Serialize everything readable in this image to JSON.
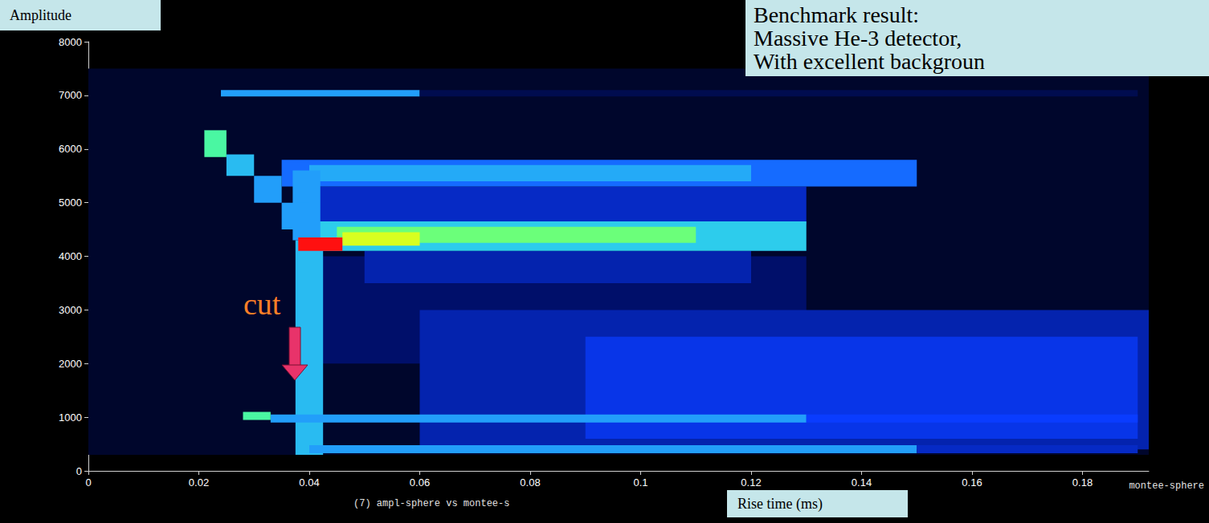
{
  "chart_data": {
    "type": "heatmap",
    "title": [
      "Benchmark result:",
      "Massive He-3 detector,",
      "With excellent backgroun"
    ],
    "y_label": "Amplitude",
    "x_label": "Rise time (ms)",
    "annotations": [
      "cut",
      "(7) ampl-sphere vs montee-s",
      "montee-sphere"
    ],
    "xlim": [
      0,
      0.192
    ],
    "xticks": [
      0,
      0.02,
      0.04,
      0.06,
      0.08,
      0.1,
      0.12,
      0.14,
      0.16,
      0.18
    ],
    "ylim": [
      0,
      8000
    ],
    "yticks": [
      0,
      1000,
      2000,
      3000,
      4000,
      5000,
      6000,
      7000,
      8000
    ],
    "grid": false,
    "colors": [
      "#000000",
      "#00106e",
      "#0a3cff",
      "#1e90ff",
      "#30d8e8",
      "#50ff90",
      "#d8ff20",
      "#ff9000",
      "#ff1010"
    ],
    "zlim": [
      0,
      10
    ],
    "cells": [
      [
        0.0,
        0.192,
        300,
        7500,
        0.5
      ],
      [
        0.04,
        0.13,
        2000,
        4000,
        1.2
      ],
      [
        0.06,
        0.192,
        400,
        3000,
        1.8
      ],
      [
        0.09,
        0.19,
        600,
        2500,
        2.3
      ],
      [
        0.05,
        0.12,
        3500,
        4100,
        1.8
      ],
      [
        0.04,
        0.13,
        4600,
        5300,
        2.0
      ],
      [
        0.035,
        0.15,
        5300,
        5800,
        3.2
      ],
      [
        0.04,
        0.12,
        5400,
        5700,
        4.2
      ],
      [
        0.04,
        0.13,
        4100,
        4650,
        4.8
      ],
      [
        0.045,
        0.11,
        4250,
        4550,
        6.5
      ],
      [
        0.046,
        0.06,
        4200,
        4450,
        7.5
      ],
      [
        0.0375,
        0.0425,
        300,
        4300,
        4.5
      ],
      [
        0.037,
        0.042,
        4300,
        5600,
        4.0
      ],
      [
        0.038,
        0.046,
        4100,
        4350,
        10
      ],
      [
        0.021,
        0.025,
        5850,
        6350,
        6.0
      ],
      [
        0.025,
        0.03,
        5500,
        5900,
        4.5
      ],
      [
        0.03,
        0.035,
        5000,
        5500,
        4.0
      ],
      [
        0.035,
        0.04,
        4500,
        5000,
        4.0
      ],
      [
        0.024,
        0.06,
        6980,
        7100,
        4.0
      ],
      [
        0.06,
        0.19,
        6980,
        7100,
        0.9
      ],
      [
        0.028,
        0.033,
        950,
        1100,
        6.0
      ],
      [
        0.033,
        0.13,
        900,
        1050,
        4.0
      ],
      [
        0.13,
        0.19,
        900,
        1050,
        2.5
      ],
      [
        0.04,
        0.15,
        330,
        480,
        4.0
      ],
      [
        0.15,
        0.19,
        330,
        480,
        2.0
      ]
    ]
  }
}
